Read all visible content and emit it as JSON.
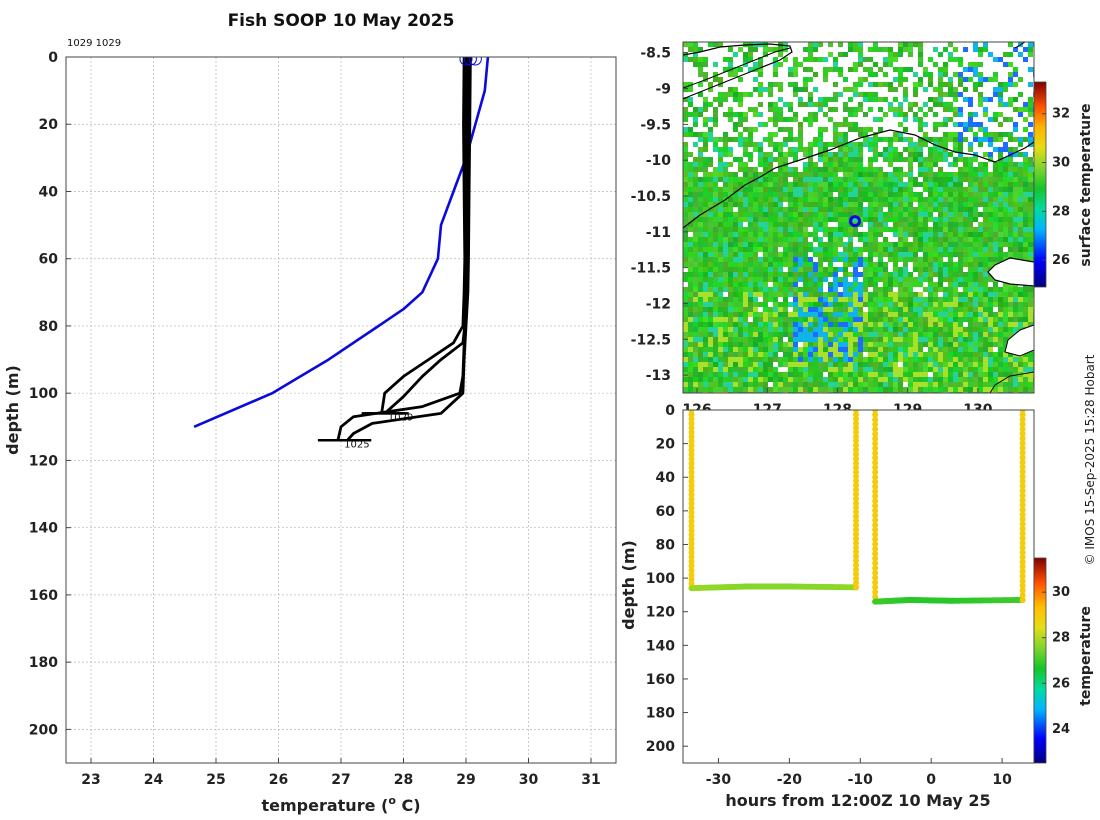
{
  "chart_data": [
    {
      "type": "line",
      "title": "Fish SOOP 10 May 2025",
      "note": "1029 1029",
      "xlabel": "temperature (",
      "xlabel_sup": "o",
      "xlabel_tail": " C)",
      "ylabel": "depth (m)",
      "xlim": [
        22.6,
        31.4
      ],
      "ylim": [
        210,
        0
      ],
      "xticks": [
        23,
        24,
        25,
        26,
        27,
        28,
        29,
        30,
        31
      ],
      "yticks": [
        0,
        20,
        40,
        60,
        80,
        100,
        120,
        140,
        160,
        180,
        200
      ],
      "grid": true,
      "profile_labels": [
        {
          "text": "1029",
          "x": 27.75,
          "y": 107
        },
        {
          "text": "1025",
          "x": 27.05,
          "y": 115
        }
      ],
      "series": [
        {
          "color": "#0a0adc",
          "style": "climatology",
          "x": [
            29.35,
            29.3,
            29.15,
            29.0,
            28.8,
            28.6,
            28.55,
            28.3,
            28.0,
            27.6,
            26.8,
            25.9,
            24.65
          ],
          "y": [
            0,
            10,
            20,
            30,
            40,
            50,
            60,
            70,
            75,
            80,
            90,
            100,
            110
          ]
        },
        {
          "color": "#000000",
          "style": "profile",
          "x": [
            28.97,
            28.96,
            28.97,
            28.98,
            28.97,
            28.95,
            28.8,
            28.4,
            28.0,
            27.7,
            27.65
          ],
          "y": [
            0,
            20,
            40,
            60,
            70,
            80,
            85,
            90,
            95,
            100,
            106
          ]
        },
        {
          "color": "#000000",
          "style": "profile",
          "x": [
            29.0,
            29.0,
            29.01,
            29.0,
            28.99,
            28.98,
            28.95,
            28.6,
            28.3,
            28.0,
            27.7
          ],
          "y": [
            0,
            20,
            40,
            60,
            70,
            80,
            85,
            90,
            95,
            101,
            106
          ]
        },
        {
          "color": "#000000",
          "style": "profile",
          "x": [
            29.04,
            29.03,
            29.03,
            29.02,
            29.0,
            28.98,
            28.95,
            28.9,
            28.3,
            27.2,
            27.0,
            26.95
          ],
          "y": [
            0,
            20,
            40,
            60,
            70,
            80,
            95,
            100,
            104,
            107,
            110,
            114
          ]
        },
        {
          "color": "#000000",
          "style": "profile",
          "x": [
            29.07,
            29.06,
            29.05,
            29.04,
            29.03,
            29.0,
            28.97,
            28.95,
            28.6,
            27.5,
            27.2,
            27.1
          ],
          "y": [
            0,
            20,
            40,
            60,
            70,
            80,
            90,
            100,
            106,
            109,
            112,
            114
          ]
        }
      ],
      "surface_markers": {
        "x": [
          29.0,
          29.07,
          29.15
        ],
        "y": [
          0,
          0,
          0
        ],
        "color": "#0a0adc"
      }
    },
    {
      "type": "heatmap",
      "xticks": [
        126,
        127,
        128,
        129,
        130
      ],
      "yticks": [
        -8.5,
        -9,
        -9.5,
        -10,
        -10.5,
        -11,
        -11.5,
        -12,
        -12.5,
        -13
      ],
      "ytick_labels": [
        "-8.5",
        "-9",
        "-9.5",
        "-10",
        "-10.5",
        "-11",
        "-11.5",
        "-12",
        "-12.5",
        "-13"
      ],
      "xlim": [
        125.8,
        130.8
      ],
      "ylim": [
        -13.25,
        -8.35
      ],
      "colorbar": {
        "label": "surface temperature",
        "ticks": [
          26,
          28,
          30,
          32
        ],
        "range": [
          24.9,
          33.3
        ]
      },
      "location_marker": {
        "lon": 128.25,
        "lat": -10.85,
        "color": "#0a0adc"
      }
    },
    {
      "type": "scatter",
      "xlabel": "hours from 12:00Z 10 May 25",
      "ylabel": "depth (m)",
      "xlim": [
        -35,
        14.5
      ],
      "ylim": [
        210,
        0
      ],
      "xticks": [
        -30,
        -20,
        -10,
        0,
        10
      ],
      "yticks": [
        0,
        20,
        40,
        60,
        80,
        100,
        120,
        140,
        160,
        180,
        200
      ],
      "colorbar": {
        "label": "temperature",
        "ticks": [
          24,
          26,
          28,
          30
        ],
        "range": [
          22.5,
          31.5
        ]
      },
      "segments": [
        {
          "x": [
            -33.8,
            -33.8
          ],
          "y": [
            0,
            106
          ],
          "t": [
            29,
            29
          ]
        },
        {
          "x": [
            -33.8,
            -26,
            -20,
            -10.6
          ],
          "y": [
            106,
            105,
            105,
            105.5
          ],
          "t": [
            27.8,
            27.6,
            27.6,
            27.7
          ]
        },
        {
          "x": [
            -10.6,
            -10.6
          ],
          "y": [
            105.5,
            0
          ],
          "t": [
            29,
            29
          ]
        },
        {
          "x": [
            -7.9,
            -7.9
          ],
          "y": [
            0,
            114
          ],
          "t": [
            29,
            29
          ]
        },
        {
          "x": [
            -7.9,
            -3,
            3,
            12.9
          ],
          "y": [
            114,
            113,
            113.5,
            113
          ],
          "t": [
            27.0,
            26.8,
            26.8,
            27.0
          ]
        },
        {
          "x": [
            12.9,
            12.9
          ],
          "y": [
            113,
            0
          ],
          "t": [
            29,
            29
          ]
        }
      ]
    }
  ],
  "credit": "© IMOS 15-Sep-2025 15:28 Hobart"
}
